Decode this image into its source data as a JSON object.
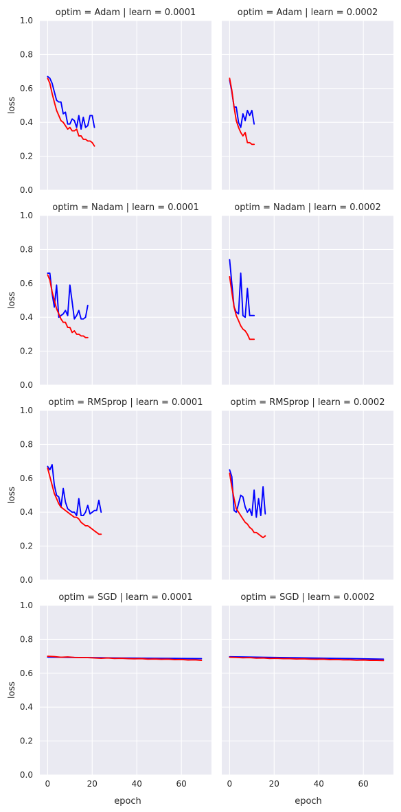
{
  "chart_data": {
    "type": "line",
    "layout": "facet-grid",
    "rows": 4,
    "cols": 2,
    "xlabel": "epoch",
    "ylabel": "loss",
    "xlim": [
      -3.5,
      73.5
    ],
    "ylim": [
      0,
      1
    ],
    "xticks": [
      0,
      20,
      40,
      60
    ],
    "yticks": [
      0.0,
      0.2,
      0.4,
      0.6,
      0.8,
      1.0
    ],
    "ytick_labels": [
      "0.0",
      "0.2",
      "0.4",
      "0.6",
      "0.8",
      "1.0"
    ],
    "xtick_labels": [
      "0",
      "20",
      "40",
      "60"
    ],
    "grid": true,
    "series_colors": [
      "#0000ff",
      "#ff0000"
    ],
    "panels": [
      {
        "title": "optim = Adam | learn = 0.0001",
        "series": [
          {
            "color": "#0000ff",
            "x": [
              0,
              1,
              2,
              3,
              4,
              5,
              6,
              7,
              8,
              9,
              10,
              11,
              12,
              13,
              14,
              15,
              16,
              17,
              18,
              19,
              20,
              21
            ],
            "values": [
              0.67,
              0.66,
              0.63,
              0.58,
              0.53,
              0.52,
              0.52,
              0.45,
              0.46,
              0.39,
              0.39,
              0.42,
              0.41,
              0.37,
              0.44,
              0.36,
              0.43,
              0.37,
              0.38,
              0.44,
              0.44,
              0.37
            ]
          },
          {
            "color": "#ff0000",
            "x": [
              0,
              1,
              2,
              3,
              4,
              5,
              6,
              7,
              8,
              9,
              10,
              11,
              12,
              13,
              14,
              15,
              16,
              17,
              18,
              19,
              20,
              21
            ],
            "values": [
              0.66,
              0.63,
              0.57,
              0.52,
              0.47,
              0.44,
              0.41,
              0.4,
              0.38,
              0.36,
              0.37,
              0.35,
              0.35,
              0.36,
              0.32,
              0.32,
              0.3,
              0.3,
              0.29,
              0.29,
              0.28,
              0.26
            ]
          }
        ]
      },
      {
        "title": "optim = Adam | learn = 0.0002",
        "series": [
          {
            "color": "#0000ff",
            "x": [
              0,
              1,
              2,
              3,
              4,
              5,
              6,
              7,
              8,
              9,
              10,
              11
            ],
            "values": [
              0.65,
              0.58,
              0.49,
              0.49,
              0.4,
              0.37,
              0.45,
              0.41,
              0.47,
              0.44,
              0.47,
              0.39
            ]
          },
          {
            "color": "#ff0000",
            "x": [
              0,
              1,
              2,
              3,
              4,
              5,
              6,
              7,
              8,
              9,
              10,
              11
            ],
            "values": [
              0.66,
              0.59,
              0.49,
              0.41,
              0.37,
              0.34,
              0.32,
              0.34,
              0.28,
              0.28,
              0.27,
              0.27
            ]
          }
        ]
      },
      {
        "title": "optim = Nadam | learn = 0.0001",
        "series": [
          {
            "color": "#0000ff",
            "x": [
              0,
              1,
              2,
              3,
              4,
              5,
              6,
              7,
              8,
              9,
              10,
              11,
              12,
              13,
              14,
              15,
              16,
              17,
              18
            ],
            "values": [
              0.66,
              0.66,
              0.54,
              0.46,
              0.59,
              0.4,
              0.41,
              0.42,
              0.44,
              0.41,
              0.59,
              0.49,
              0.39,
              0.41,
              0.44,
              0.39,
              0.39,
              0.4,
              0.47
            ]
          },
          {
            "color": "#ff0000",
            "x": [
              0,
              1,
              2,
              3,
              4,
              5,
              6,
              7,
              8,
              9,
              10,
              11,
              12,
              13,
              14,
              15,
              16,
              17,
              18
            ],
            "values": [
              0.65,
              0.62,
              0.55,
              0.5,
              0.45,
              0.42,
              0.39,
              0.37,
              0.37,
              0.34,
              0.34,
              0.31,
              0.32,
              0.3,
              0.3,
              0.29,
              0.29,
              0.28,
              0.28
            ]
          }
        ]
      },
      {
        "title": "optim = Nadam | learn = 0.0002",
        "series": [
          {
            "color": "#0000ff",
            "x": [
              0,
              1,
              2,
              3,
              4,
              5,
              6,
              7,
              8,
              9,
              10,
              11
            ],
            "values": [
              0.74,
              0.6,
              0.46,
              0.43,
              0.42,
              0.66,
              0.41,
              0.4,
              0.57,
              0.41,
              0.41,
              0.41
            ]
          },
          {
            "color": "#ff0000",
            "x": [
              0,
              1,
              2,
              3,
              4,
              5,
              6,
              7,
              8,
              9,
              10,
              11
            ],
            "values": [
              0.64,
              0.55,
              0.46,
              0.41,
              0.38,
              0.35,
              0.33,
              0.32,
              0.3,
              0.27,
              0.27,
              0.27
            ]
          }
        ]
      },
      {
        "title": "optim = RMSprop | learn = 0.0001",
        "series": [
          {
            "color": "#0000ff",
            "x": [
              0,
              1,
              2,
              3,
              4,
              5,
              6,
              7,
              8,
              9,
              10,
              11,
              12,
              13,
              14,
              15,
              16,
              17,
              18,
              19,
              20,
              21,
              22,
              23,
              24
            ],
            "values": [
              0.67,
              0.65,
              0.68,
              0.56,
              0.5,
              0.49,
              0.43,
              0.54,
              0.46,
              0.42,
              0.41,
              0.4,
              0.4,
              0.38,
              0.48,
              0.38,
              0.38,
              0.4,
              0.44,
              0.39,
              0.4,
              0.41,
              0.41,
              0.47,
              0.4
            ]
          },
          {
            "color": "#ff0000",
            "x": [
              0,
              1,
              2,
              3,
              4,
              5,
              6,
              7,
              8,
              9,
              10,
              11,
              12,
              13,
              14,
              15,
              16,
              17,
              18,
              19,
              20,
              21,
              22,
              23,
              24
            ],
            "values": [
              0.66,
              0.61,
              0.56,
              0.51,
              0.48,
              0.45,
              0.43,
              0.42,
              0.41,
              0.4,
              0.39,
              0.38,
              0.37,
              0.37,
              0.36,
              0.34,
              0.33,
              0.32,
              0.32,
              0.31,
              0.3,
              0.29,
              0.28,
              0.27,
              0.27
            ]
          }
        ]
      },
      {
        "title": "optim = RMSprop | learn = 0.0002",
        "series": [
          {
            "color": "#0000ff",
            "x": [
              0,
              1,
              2,
              3,
              4,
              5,
              6,
              7,
              8,
              9,
              10,
              11,
              12,
              13,
              14,
              15,
              16
            ],
            "values": [
              0.65,
              0.61,
              0.41,
              0.4,
              0.45,
              0.5,
              0.49,
              0.43,
              0.4,
              0.42,
              0.38,
              0.53,
              0.37,
              0.48,
              0.38,
              0.55,
              0.39
            ]
          },
          {
            "color": "#ff0000",
            "x": [
              0,
              1,
              2,
              3,
              4,
              5,
              6,
              7,
              8,
              9,
              10,
              11,
              12,
              13,
              14,
              15,
              16
            ],
            "values": [
              0.63,
              0.55,
              0.48,
              0.42,
              0.4,
              0.38,
              0.36,
              0.34,
              0.33,
              0.31,
              0.3,
              0.28,
              0.28,
              0.27,
              0.26,
              0.25,
              0.26
            ]
          }
        ]
      },
      {
        "title": "optim = SGD | learn = 0.0001",
        "series": [
          {
            "color": "#0000ff",
            "x": [
              0,
              10,
              20,
              30,
              40,
              50,
              60,
              69
            ],
            "values": [
              0.695,
              0.693,
              0.692,
              0.69,
              0.689,
              0.688,
              0.687,
              0.686
            ]
          },
          {
            "color": "#ff0000",
            "x": [
              0,
              3,
              6,
              9,
              12,
              15,
              18,
              21,
              24,
              27,
              30,
              33,
              36,
              39,
              42,
              45,
              48,
              51,
              54,
              57,
              60,
              63,
              66,
              69
            ],
            "values": [
              0.7,
              0.698,
              0.694,
              0.696,
              0.693,
              0.692,
              0.692,
              0.69,
              0.688,
              0.69,
              0.687,
              0.688,
              0.686,
              0.685,
              0.686,
              0.683,
              0.684,
              0.682,
              0.683,
              0.68,
              0.681,
              0.678,
              0.679,
              0.676
            ]
          }
        ]
      },
      {
        "title": "optim = SGD | learn = 0.0002",
        "series": [
          {
            "color": "#0000ff",
            "x": [
              0,
              10,
              20,
              30,
              40,
              50,
              60,
              69
            ],
            "values": [
              0.697,
              0.695,
              0.693,
              0.691,
              0.689,
              0.687,
              0.685,
              0.683
            ]
          },
          {
            "color": "#ff0000",
            "x": [
              0,
              3,
              6,
              9,
              12,
              15,
              18,
              21,
              24,
              27,
              30,
              33,
              36,
              39,
              42,
              45,
              48,
              51,
              54,
              57,
              60,
              63,
              66,
              69
            ],
            "values": [
              0.694,
              0.693,
              0.691,
              0.692,
              0.689,
              0.69,
              0.687,
              0.688,
              0.686,
              0.686,
              0.684,
              0.685,
              0.683,
              0.682,
              0.683,
              0.68,
              0.681,
              0.679,
              0.679,
              0.677,
              0.678,
              0.676,
              0.676,
              0.675
            ]
          }
        ]
      }
    ]
  }
}
